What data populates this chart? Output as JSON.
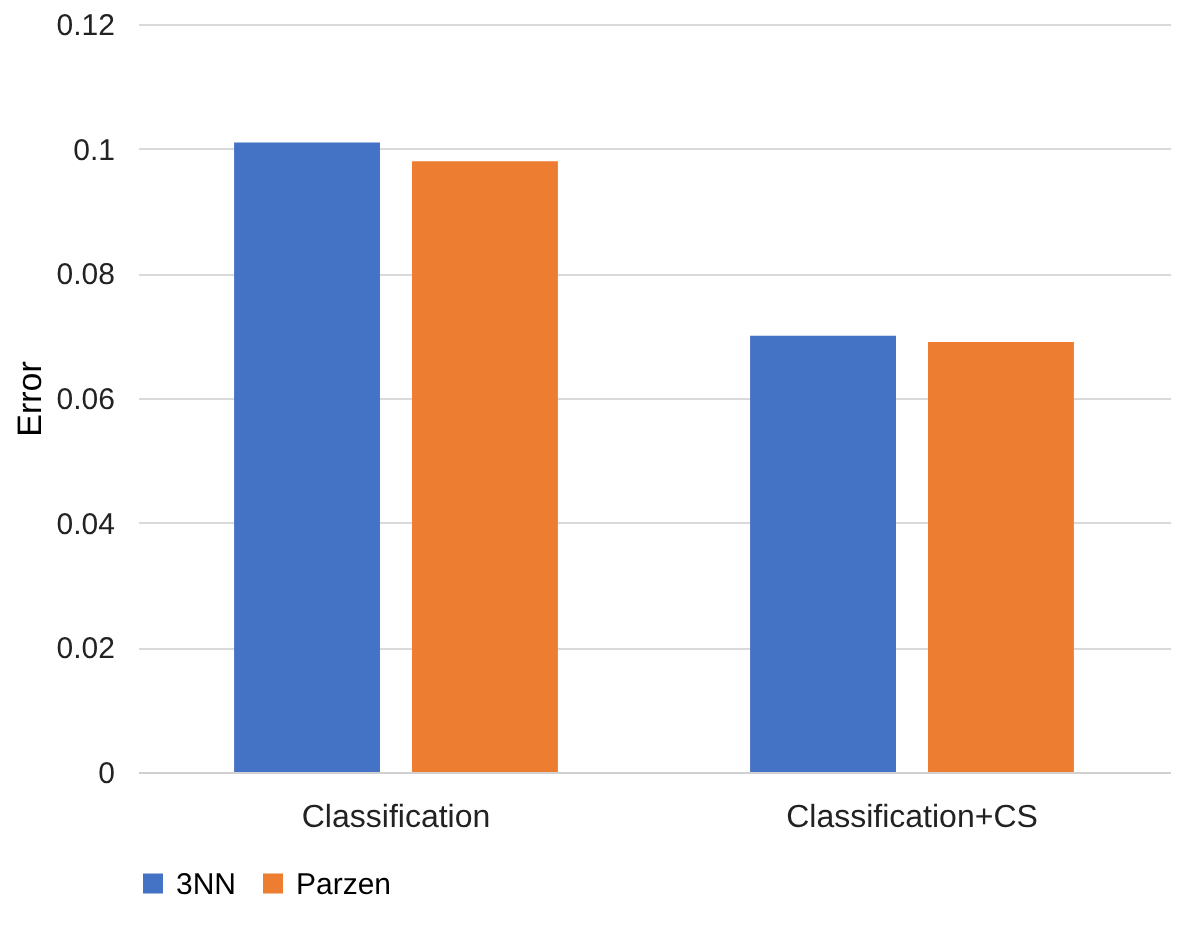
{
  "chart_data": {
    "type": "bar",
    "ylabel": "Error",
    "categories": [
      "Classification",
      "Classification+CS"
    ],
    "series": [
      {
        "name": "3NN",
        "color": "#4472c4",
        "values": [
          0.101,
          0.07
        ]
      },
      {
        "name": "Parzen",
        "color": "#ed7d31",
        "values": [
          0.098,
          0.069
        ]
      }
    ],
    "ylim": [
      0,
      0.12
    ],
    "yticks": [
      0,
      0.02,
      0.04,
      0.06,
      0.08,
      0.1,
      0.12
    ],
    "grid": "y",
    "legend": "bottom"
  }
}
